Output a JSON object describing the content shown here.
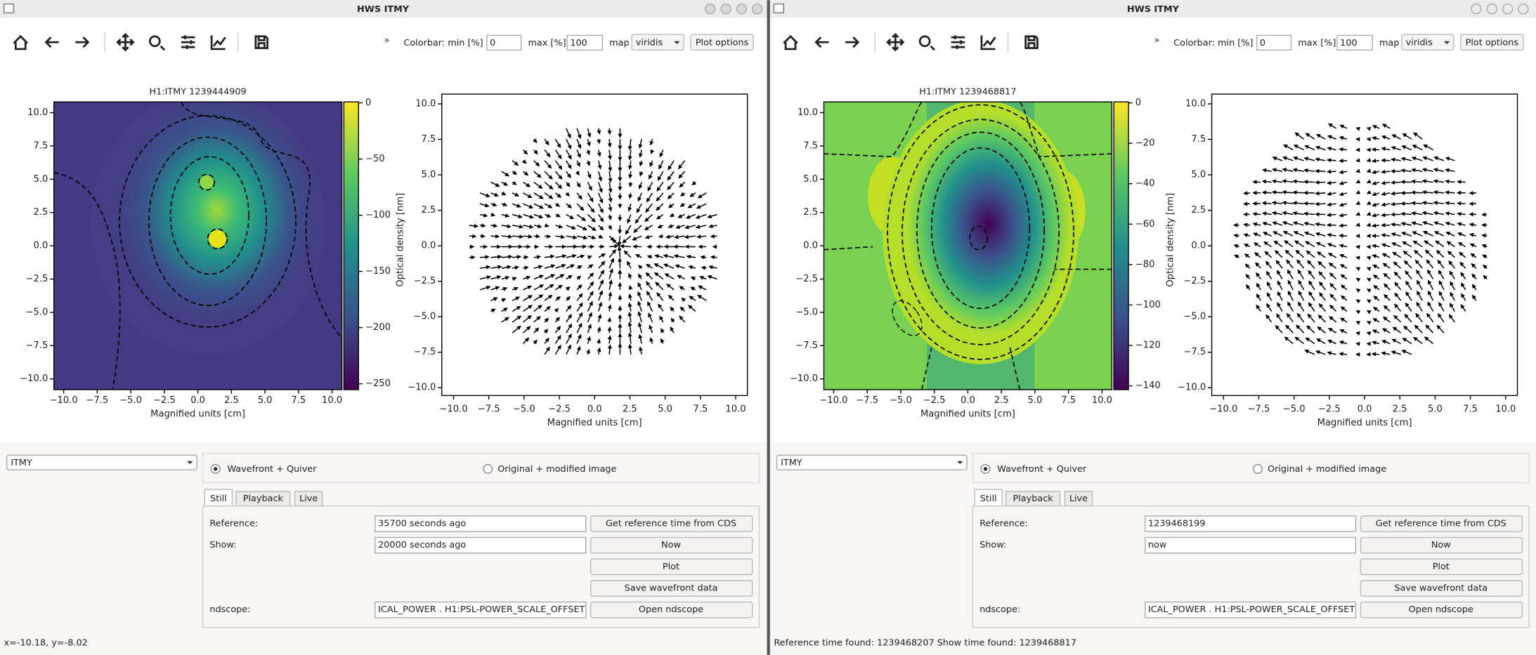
{
  "windows": [
    {
      "title": "HWS ITMY",
      "overflow": "»",
      "colorbar_min_label": "Colorbar: min [%]",
      "min": "0",
      "max_label": "max [%]",
      "max": "100",
      "map_label": "map",
      "map": "viridis",
      "plot_options": "Plot options",
      "heatmap": {
        "title": "H1:ITMY 1239444909",
        "xlabel": "Magnified units [cm]",
        "xticks": [
          "−10.0",
          "−7.5",
          "−5.0",
          "−2.5",
          "0.0",
          "2.5",
          "5.0",
          "7.5",
          "10.0"
        ],
        "yticks": [
          "10.0",
          "7.5",
          "5.0",
          "2.5",
          "0.0",
          "−2.5",
          "−5.0",
          "−7.5",
          "−10.0"
        ],
        "colorbar_ticks": [
          "0",
          "−50",
          "−100",
          "−150",
          "−200",
          "−250"
        ],
        "colorbar_label": "Optical density [nm]"
      },
      "quiver": {
        "xlabel": "Magnified units [cm]",
        "xticks": [
          "−10.0",
          "−7.5",
          "−5.0",
          "−2.5",
          "0.0",
          "2.5",
          "5.0",
          "7.5",
          "10.0"
        ],
        "yticks": [
          "10.0",
          "7.5",
          "5.0",
          "2.5",
          "0.0",
          "−2.5",
          "−5.0",
          "−7.5",
          "−10.0"
        ]
      },
      "selector": "ITMY",
      "radio": [
        "Wavefront + Quiver",
        "Original + modified image"
      ],
      "tabs": [
        "Still",
        "Playback",
        "Live"
      ],
      "reference_label": "Reference:",
      "reference": "35700 seconds ago",
      "show_label": "Show:",
      "show": "20000 seconds ago",
      "ndscope_label": "ndscope:",
      "ndscope": "ICAL_POWER . H1:PSL-POWER_SCALE_OFFSET",
      "buttons": [
        "Get reference time from CDS",
        "Now",
        "Plot",
        "Save wavefront data",
        "Open ndscope"
      ],
      "status": "x=-10.18, y=-8.02"
    },
    {
      "title": "HWS ITMY",
      "overflow": "»",
      "colorbar_min_label": "Colorbar: min [%]",
      "min": "0",
      "max_label": "max [%]",
      "max": "100",
      "map_label": "map",
      "map": "viridis",
      "plot_options": "Plot options",
      "heatmap": {
        "title": "H1:ITMY 1239468817",
        "xlabel": "Magnified units [cm]",
        "xticks": [
          "−10.0",
          "−7.5",
          "−5.0",
          "−2.5",
          "0.0",
          "2.5",
          "5.0",
          "7.5",
          "10.0"
        ],
        "yticks": [
          "10.0",
          "7.5",
          "5.0",
          "2.5",
          "0.0",
          "−2.5",
          "−5.0",
          "−7.5",
          "−10.0"
        ],
        "colorbar_ticks": [
          "0",
          "−20",
          "−40",
          "−60",
          "−80",
          "−100",
          "−120",
          "−140"
        ],
        "colorbar_label": "Optical density [nm]"
      },
      "quiver": {
        "xlabel": "Magnified units [cm]",
        "xticks": [
          "−10.0",
          "−7.5",
          "−5.0",
          "−2.5",
          "0.0",
          "2.5",
          "5.0",
          "7.5",
          "10.0"
        ],
        "yticks": [
          "10.0",
          "7.5",
          "5.0",
          "2.5",
          "0.0",
          "−2.5",
          "−5.0",
          "−7.5",
          "−10.0"
        ]
      },
      "selector": "ITMY",
      "radio": [
        "Wavefront + Quiver",
        "Original + modified image"
      ],
      "tabs": [
        "Still",
        "Playback",
        "Live"
      ],
      "reference_label": "Reference:",
      "reference": "1239468199",
      "show_label": "Show:",
      "show": "now",
      "ndscope_label": "ndscope:",
      "ndscope": "ICAL_POWER . H1:PSL-POWER_SCALE_OFFSET",
      "buttons": [
        "Get reference time from CDS",
        "Now",
        "Plot",
        "Save wavefront data",
        "Open ndscope"
      ],
      "status": "Reference time found: 1239468207   Show time found: 1239468817"
    }
  ]
}
